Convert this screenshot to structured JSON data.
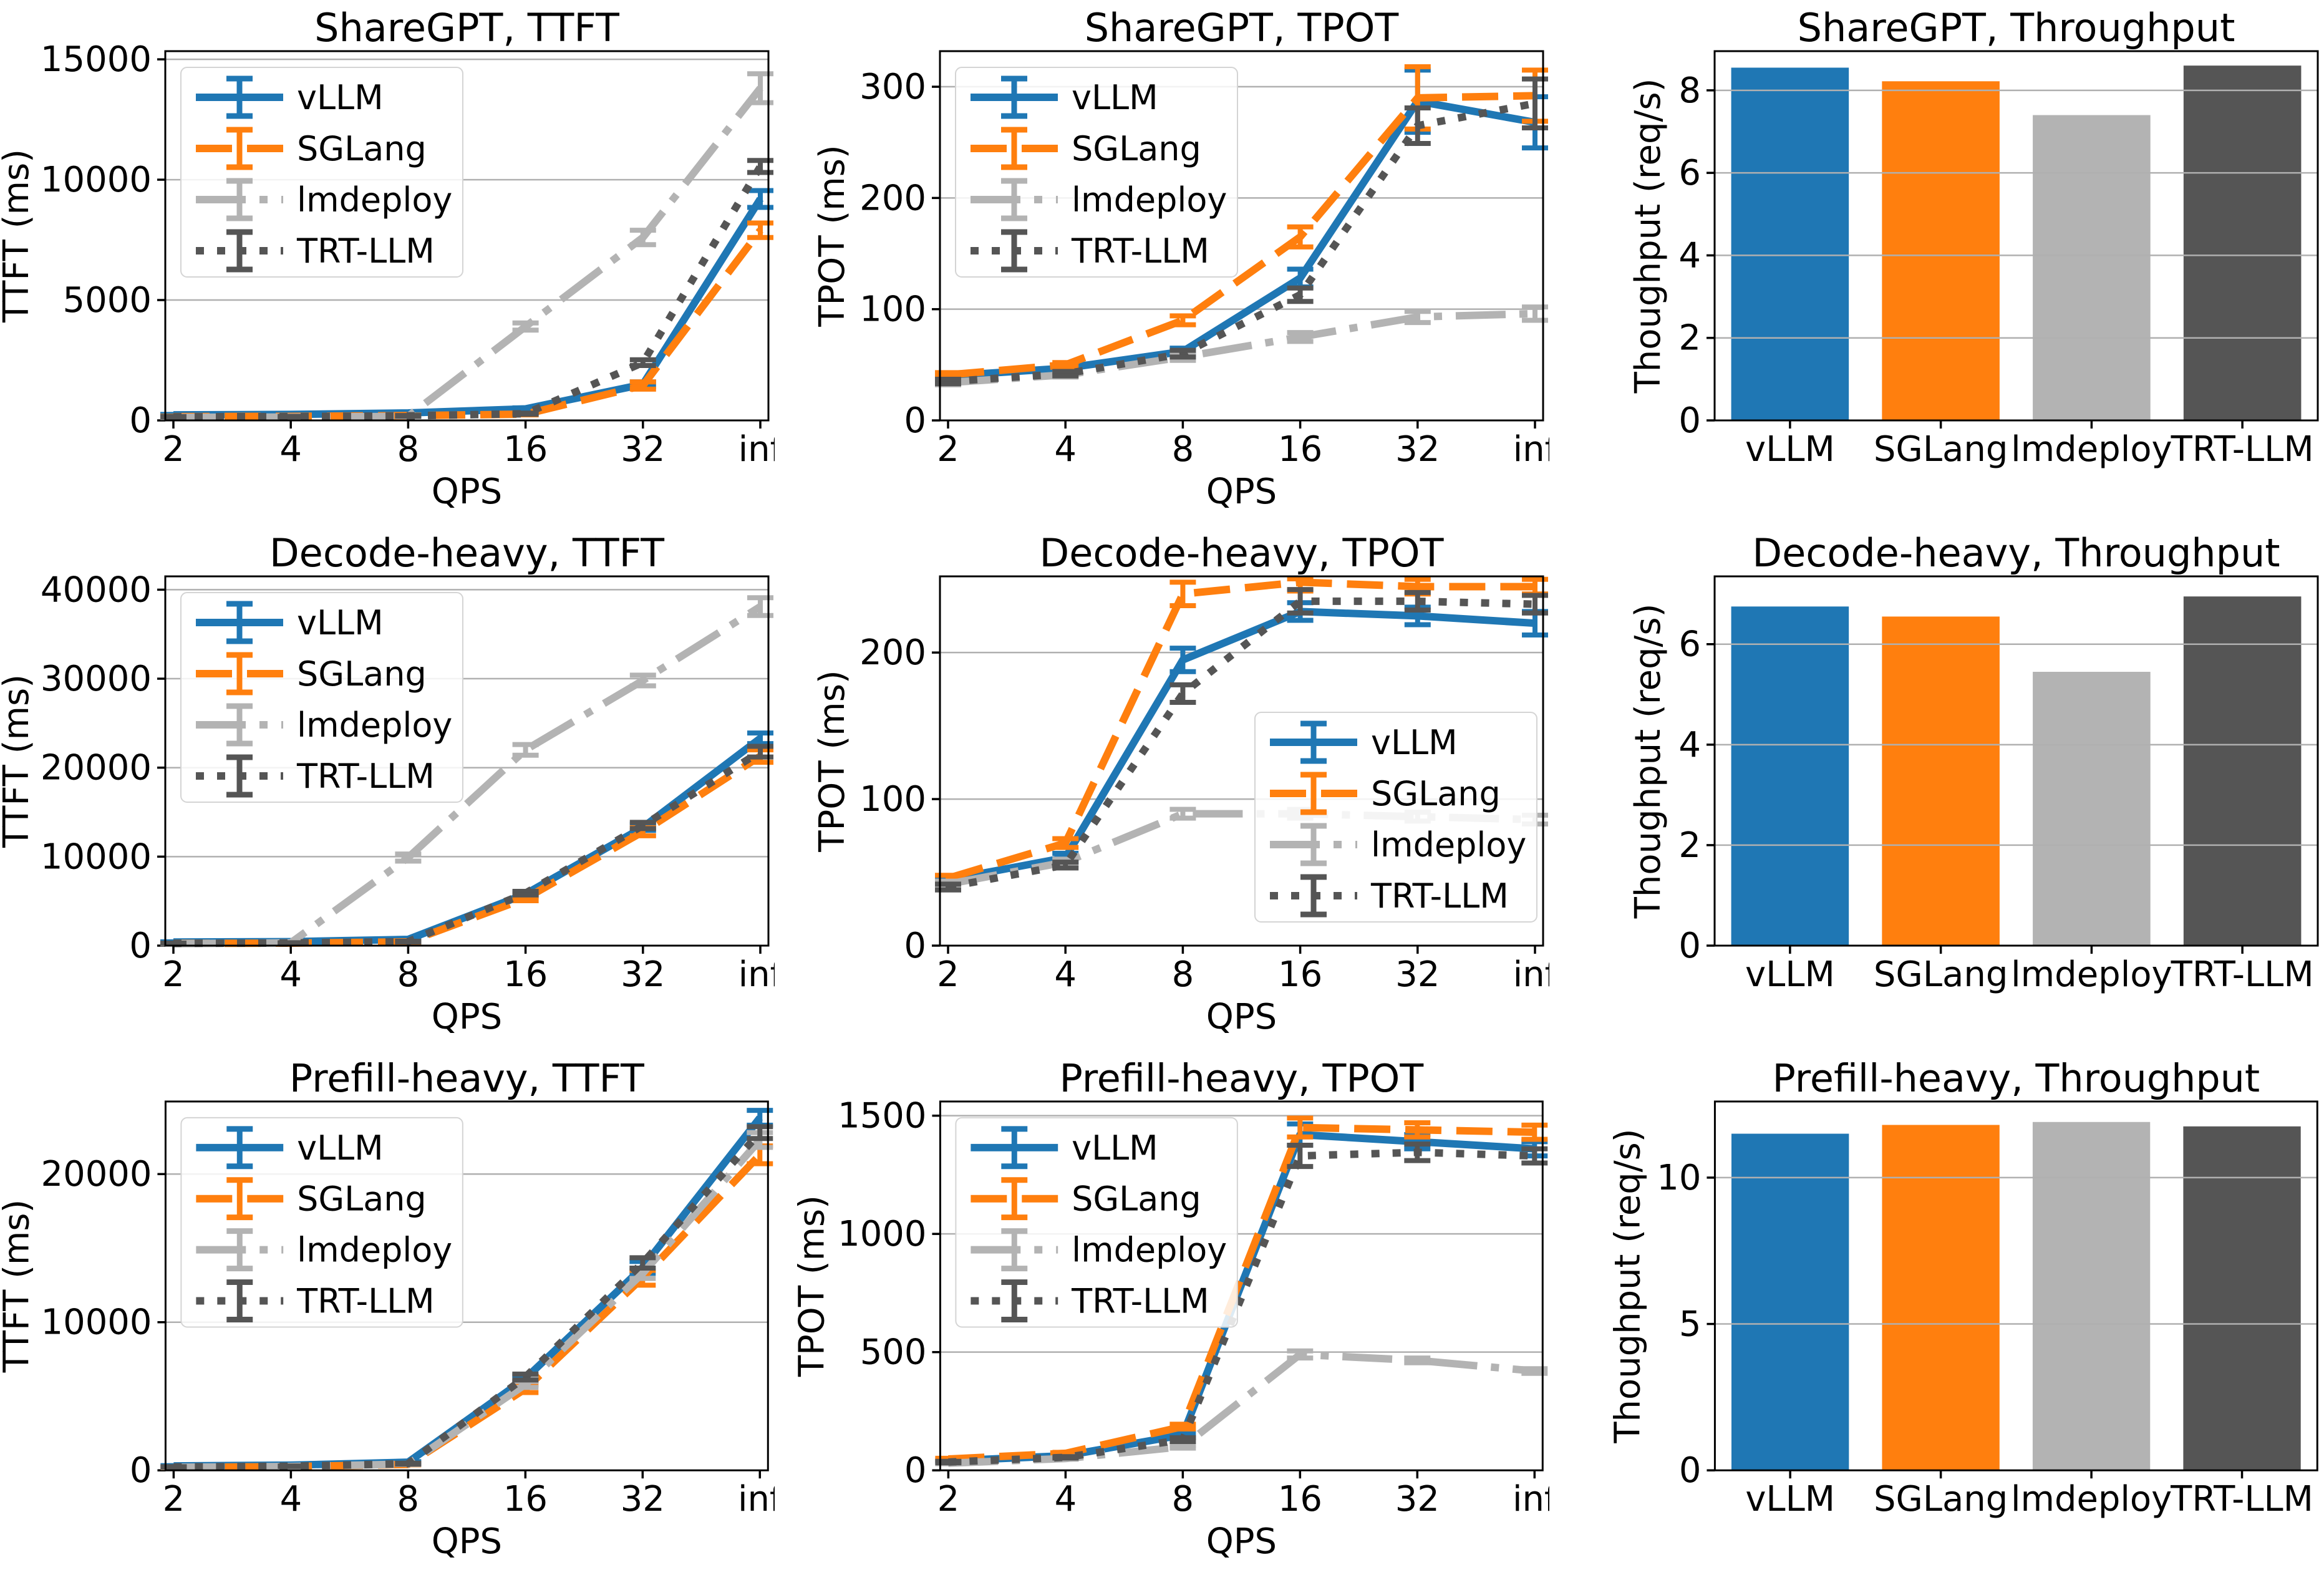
{
  "figure": {
    "background": "#ffffff",
    "x_axis_label": "QPS",
    "x_labels": [
      "2",
      "4",
      "8",
      "16",
      "32",
      "inf"
    ]
  },
  "frameworks": [
    {
      "name": "vLLM",
      "color": "#1f77b4",
      "linestyle": "solid"
    },
    {
      "name": "SGLang",
      "color": "#ff7f0e",
      "linestyle": "dashed"
    },
    {
      "name": "lmdeploy",
      "color": "#b3b3b3",
      "linestyle": "dashdot"
    },
    {
      "name": "TRT-LLM",
      "color": "#555555",
      "linestyle": "dotted"
    }
  ],
  "chart_data": [
    {
      "id": "sharegpt-ttft",
      "type": "line",
      "title": "ShareGPT, TTFT",
      "xlabel": "QPS",
      "ylabel": "TTFT (ms)",
      "x_labels": [
        "2",
        "4",
        "8",
        "16",
        "32",
        "inf"
      ],
      "yticks": [
        0,
        5000,
        10000,
        15000
      ],
      "ylim": [
        0,
        15340
      ],
      "grid": true,
      "legend_loc": "upper-left",
      "series": [
        {
          "name": "vLLM",
          "values": [
            230,
            250,
            310,
            480,
            1500,
            9200
          ],
          "err": [
            20,
            20,
            25,
            40,
            100,
            350
          ]
        },
        {
          "name": "SGLang",
          "values": [
            160,
            170,
            200,
            260,
            1450,
            7900
          ],
          "err": [
            15,
            15,
            20,
            30,
            150,
            300
          ]
        },
        {
          "name": "lmdeploy",
          "values": [
            130,
            140,
            170,
            3900,
            7600,
            13800
          ],
          "err": [
            10,
            10,
            15,
            150,
            300,
            600
          ]
        },
        {
          "name": "TRT-LLM",
          "values": [
            150,
            160,
            190,
            280,
            2400,
            10550
          ],
          "err": [
            10,
            10,
            15,
            25,
            120,
            250
          ]
        }
      ]
    },
    {
      "id": "sharegpt-tpot",
      "type": "line",
      "title": "ShareGPT, TPOT",
      "xlabel": "QPS",
      "ylabel": "TPOT (ms)",
      "x_labels": [
        "2",
        "4",
        "8",
        "16",
        "32",
        "inf"
      ],
      "yticks": [
        0,
        100,
        200,
        300
      ],
      "ylim": [
        0,
        332
      ],
      "grid": true,
      "legend_loc": "upper-left",
      "series": [
        {
          "name": "vLLM",
          "values": [
            40,
            47,
            62,
            128,
            287,
            268
          ],
          "err": [
            2,
            2,
            3,
            8,
            28,
            23
          ]
        },
        {
          "name": "SGLang",
          "values": [
            41,
            50,
            90,
            165,
            290,
            292
          ],
          "err": [
            2,
            2,
            4,
            9,
            28,
            23
          ]
        },
        {
          "name": "lmdeploy",
          "values": [
            34,
            41,
            57,
            75,
            93,
            96
          ],
          "err": [
            2,
            2,
            3,
            4,
            5,
            6
          ]
        },
        {
          "name": "TRT-LLM",
          "values": [
            35,
            42,
            60,
            113,
            265,
            285
          ],
          "err": [
            2,
            2,
            3,
            6,
            16,
            22
          ]
        }
      ]
    },
    {
      "id": "sharegpt-throughput",
      "type": "bar",
      "title": "ShareGPT, Throughput",
      "xlabel": "",
      "ylabel": "Thoughput (req/s)",
      "categories": [
        "vLLM",
        "SGLang",
        "lmdeploy",
        "TRT-LLM"
      ],
      "values": [
        8.55,
        8.22,
        7.4,
        8.6
      ],
      "yticks": [
        0,
        2,
        4,
        6,
        8
      ],
      "ylim": [
        0,
        8.95
      ],
      "grid": true
    },
    {
      "id": "decode-heavy-ttft",
      "type": "line",
      "title": "Decode-heavy, TTFT",
      "xlabel": "QPS",
      "ylabel": "TTFT (ms)",
      "x_labels": [
        "2",
        "4",
        "8",
        "16",
        "32",
        "inf"
      ],
      "yticks": [
        0,
        10000,
        20000,
        30000,
        40000
      ],
      "ylim": [
        0,
        41500
      ],
      "grid": true,
      "legend_loc": "upper-left",
      "series": [
        {
          "name": "vLLM",
          "values": [
            400,
            450,
            700,
            5800,
            13300,
            23300
          ],
          "err": [
            30,
            30,
            50,
            200,
            350,
            600
          ]
        },
        {
          "name": "SGLang",
          "values": [
            250,
            280,
            420,
            5300,
            12800,
            21300
          ],
          "err": [
            20,
            20,
            40,
            250,
            450,
            700
          ]
        },
        {
          "name": "lmdeploy",
          "values": [
            220,
            320,
            9900,
            22000,
            29800,
            38100
          ],
          "err": [
            20,
            30,
            400,
            600,
            600,
            1000
          ]
        },
        {
          "name": "TRT-LLM",
          "values": [
            260,
            300,
            450,
            5900,
            13500,
            21800
          ],
          "err": [
            20,
            20,
            40,
            200,
            350,
            600
          ]
        }
      ]
    },
    {
      "id": "decode-heavy-tpot",
      "type": "line",
      "title": "Decode-heavy, TPOT",
      "xlabel": "QPS",
      "ylabel": "TPOT (ms)",
      "x_labels": [
        "2",
        "4",
        "8",
        "16",
        "32",
        "inf"
      ],
      "yticks": [
        0,
        100,
        200
      ],
      "ylim": [
        0,
        252
      ],
      "grid": true,
      "legend_loc": "lower-right",
      "series": [
        {
          "name": "vLLM",
          "values": [
            45,
            60,
            195,
            228,
            225,
            220
          ],
          "err": [
            2,
            3,
            8,
            6,
            6,
            8
          ]
        },
        {
          "name": "SGLang",
          "values": [
            46,
            70,
            240,
            248,
            245,
            245
          ],
          "err": [
            2,
            3,
            8,
            6,
            5,
            5
          ]
        },
        {
          "name": "lmdeploy",
          "values": [
            42,
            57,
            90,
            90,
            88,
            86
          ],
          "err": [
            2,
            2,
            3,
            3,
            3,
            3
          ]
        },
        {
          "name": "TRT-LLM",
          "values": [
            40,
            55,
            172,
            235,
            235,
            233
          ],
          "err": [
            2,
            2,
            6,
            8,
            6,
            6
          ]
        }
      ]
    },
    {
      "id": "decode-heavy-throughput",
      "type": "bar",
      "title": "Decode-heavy, Throughput",
      "xlabel": "",
      "ylabel": "Thoughput (req/s)",
      "categories": [
        "vLLM",
        "SGLang",
        "lmdeploy",
        "TRT-LLM"
      ],
      "values": [
        6.75,
        6.55,
        5.45,
        6.95
      ],
      "yticks": [
        0,
        2,
        4,
        6
      ],
      "ylim": [
        0,
        7.35
      ],
      "grid": true
    },
    {
      "id": "prefill-heavy-ttft",
      "type": "line",
      "title": "Prefill-heavy, TTFT",
      "xlabel": "QPS",
      "ylabel": "TTFT (ms)",
      "x_labels": [
        "2",
        "4",
        "8",
        "16",
        "32",
        "inf"
      ],
      "yticks": [
        0,
        10000,
        20000
      ],
      "ylim": [
        0,
        24900
      ],
      "grid": true,
      "legend_loc": "upper-left",
      "series": [
        {
          "name": "vLLM",
          "values": [
            300,
            350,
            550,
            6200,
            13700,
            23800
          ],
          "err": [
            20,
            20,
            40,
            200,
            400,
            500
          ]
        },
        {
          "name": "SGLang",
          "values": [
            200,
            250,
            400,
            5500,
            13000,
            21300
          ],
          "err": [
            15,
            15,
            30,
            250,
            500,
            600
          ]
        },
        {
          "name": "lmdeploy",
          "values": [
            210,
            260,
            420,
            5800,
            13300,
            22300
          ],
          "err": [
            15,
            15,
            30,
            200,
            350,
            500
          ]
        },
        {
          "name": "TRT-LLM",
          "values": [
            230,
            280,
            450,
            6300,
            14000,
            22800
          ],
          "err": [
            15,
            15,
            30,
            200,
            350,
            400
          ]
        }
      ]
    },
    {
      "id": "prefill-heavy-tpot",
      "type": "line",
      "title": "Prefill-heavy, TPOT",
      "xlabel": "QPS",
      "ylabel": "TPOT (ms)",
      "x_labels": [
        "2",
        "4",
        "8",
        "16",
        "32",
        "inf"
      ],
      "yticks": [
        0,
        500,
        1000,
        1500
      ],
      "ylim": [
        0,
        1560
      ],
      "grid": true,
      "legend_loc": "upper-left",
      "series": [
        {
          "name": "vLLM",
          "values": [
            40,
            62,
            150,
            1420,
            1390,
            1360
          ],
          "err": [
            3,
            4,
            10,
            45,
            30,
            30
          ]
        },
        {
          "name": "SGLang",
          "values": [
            48,
            72,
            185,
            1450,
            1440,
            1430
          ],
          "err": [
            3,
            4,
            10,
            40,
            30,
            30
          ]
        },
        {
          "name": "lmdeploy",
          "values": [
            30,
            50,
            100,
            490,
            465,
            420
          ],
          "err": [
            2,
            3,
            6,
            15,
            10,
            10
          ]
        },
        {
          "name": "TRT-LLM",
          "values": [
            35,
            55,
            130,
            1330,
            1345,
            1330
          ],
          "err": [
            3,
            3,
            8,
            45,
            35,
            30
          ]
        }
      ]
    },
    {
      "id": "prefill-heavy-throughput",
      "type": "bar",
      "title": "Prefill-heavy, Throughput",
      "xlabel": "",
      "ylabel": "Thoughput (req/s)",
      "categories": [
        "vLLM",
        "SGLang",
        "lmdeploy",
        "TRT-LLM"
      ],
      "values": [
        11.5,
        11.8,
        11.9,
        11.75
      ],
      "yticks": [
        0,
        5,
        10
      ],
      "ylim": [
        0,
        12.6
      ],
      "grid": true
    }
  ]
}
